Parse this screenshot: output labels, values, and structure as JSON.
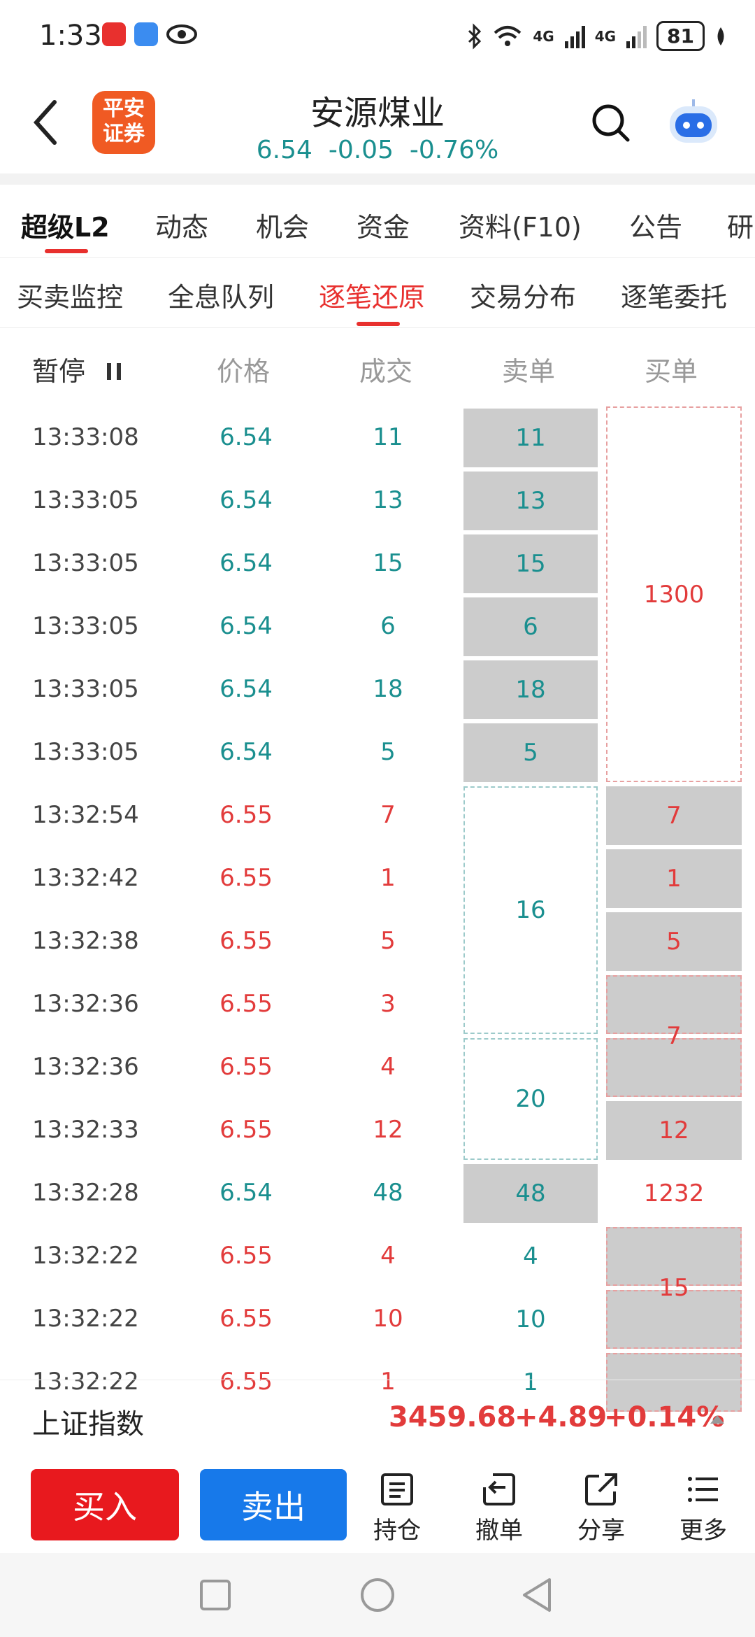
{
  "status": {
    "time": "1:33",
    "battery": "81",
    "net1": "4G",
    "net2": "4G"
  },
  "header": {
    "title": "安源煤业",
    "quote": "6.54  -0.05  -0.76%",
    "logo_text": "平安证券",
    "logo_line1": "平安",
    "logo_line2": "证券"
  },
  "tabs": [
    "超级L2",
    "动态",
    "机会",
    "资金",
    "资料(F10)",
    "公告",
    "研"
  ],
  "subtabs": [
    "买卖监控",
    "全息队列",
    "逐笔还原",
    "交易分布",
    "逐笔委托"
  ],
  "columns": {
    "pause": "暂停",
    "price": "价格",
    "volume": "成交",
    "sell": "卖单",
    "buy": "买单"
  },
  "trades": [
    {
      "time": "13:33:08",
      "price": "6.54",
      "vol": "11",
      "side": "sell"
    },
    {
      "time": "13:33:05",
      "price": "6.54",
      "vol": "13",
      "side": "sell"
    },
    {
      "time": "13:33:05",
      "price": "6.54",
      "vol": "15",
      "side": "sell"
    },
    {
      "time": "13:33:05",
      "price": "6.54",
      "vol": "6",
      "side": "sell"
    },
    {
      "time": "13:33:05",
      "price": "6.54",
      "vol": "18",
      "side": "sell"
    },
    {
      "time": "13:33:05",
      "price": "6.54",
      "vol": "5",
      "side": "sell"
    },
    {
      "time": "13:32:54",
      "price": "6.55",
      "vol": "7",
      "side": "buy"
    },
    {
      "time": "13:32:42",
      "price": "6.55",
      "vol": "1",
      "side": "buy"
    },
    {
      "time": "13:32:38",
      "price": "6.55",
      "vol": "5",
      "side": "buy"
    },
    {
      "time": "13:32:36",
      "price": "6.55",
      "vol": "3",
      "side": "buy"
    },
    {
      "time": "13:32:36",
      "price": "6.55",
      "vol": "4",
      "side": "buy"
    },
    {
      "time": "13:32:33",
      "price": "6.55",
      "vol": "12",
      "side": "buy"
    },
    {
      "time": "13:32:28",
      "price": "6.54",
      "vol": "48",
      "side": "sell"
    },
    {
      "time": "13:32:22",
      "price": "6.55",
      "vol": "4",
      "side": "buy"
    },
    {
      "time": "13:32:22",
      "price": "6.55",
      "vol": "10",
      "side": "buy"
    },
    {
      "time": "13:32:22",
      "price": "6.55",
      "vol": "1",
      "side": "buy"
    }
  ],
  "sell_orders": [
    "11",
    "13",
    "15",
    "6",
    "18",
    "5",
    "16",
    "20",
    "48",
    "4",
    "10",
    "1"
  ],
  "buy_orders": [
    "1300",
    "7",
    "1",
    "5",
    "7",
    "12",
    "1232",
    "15"
  ],
  "index": {
    "name": "上证指数",
    "value": "3459.68",
    "change": "+4.89",
    "pct": "+0.14%"
  },
  "toolbar": {
    "buy": "买入",
    "sell": "卖出",
    "position": "持仓",
    "cancel": "撤单",
    "share": "分享",
    "more": "更多"
  },
  "colors": {
    "up": "#e23b3b",
    "down": "#1a8f8f",
    "accent": "#e8302e",
    "buy_button": "#e8191e",
    "sell_button": "#1779ea"
  }
}
